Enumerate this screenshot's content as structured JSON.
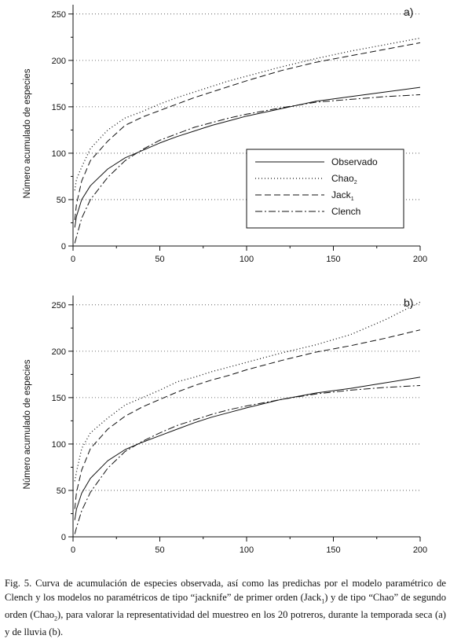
{
  "chart_data": [
    {
      "type": "line",
      "panel_label": "a)",
      "ylabel": "Número acumulado de especies",
      "xlabel": "",
      "xlim": [
        0,
        200
      ],
      "ylim": [
        0,
        260
      ],
      "xticks": [
        0,
        50,
        100,
        150,
        200
      ],
      "yticks": [
        0,
        50,
        100,
        150,
        200,
        250
      ],
      "gridlines_y": [
        50,
        100,
        150,
        200,
        250
      ],
      "legend": {
        "position": "center-right",
        "entries": [
          {
            "label": "Observado",
            "sub": ""
          },
          {
            "label": "Chao",
            "sub": "2"
          },
          {
            "label": "Jack",
            "sub": "1"
          },
          {
            "label": "Clench",
            "sub": ""
          }
        ]
      },
      "x": [
        1,
        2,
        5,
        10,
        20,
        30,
        40,
        50,
        60,
        70,
        80,
        90,
        100,
        120,
        140,
        160,
        180,
        200
      ],
      "series": [
        {
          "name": "Observado",
          "style": "solid",
          "values": [
            20,
            32,
            50,
            65,
            83,
            95,
            103,
            111,
            118,
            124,
            130,
            135,
            140,
            148,
            156,
            161,
            166,
            171
          ]
        },
        {
          "name": "Chao2",
          "style": "dotted",
          "values": [
            60,
            72,
            85,
            105,
            125,
            138,
            145,
            153,
            160,
            166,
            172,
            178,
            183,
            193,
            202,
            210,
            217,
            224
          ]
        },
        {
          "name": "Jack1",
          "style": "dashed",
          "values": [
            28,
            45,
            70,
            92,
            113,
            130,
            139,
            146,
            153,
            160,
            166,
            172,
            178,
            189,
            198,
            205,
            212,
            219
          ]
        },
        {
          "name": "Clench",
          "style": "dashdot",
          "values": [
            3,
            10,
            30,
            50,
            74,
            92,
            104,
            114,
            121,
            128,
            133,
            138,
            142,
            149,
            155,
            158,
            161,
            163
          ]
        }
      ]
    },
    {
      "type": "line",
      "panel_label": "b)",
      "ylabel": "Número acumulado de especies",
      "xlabel": "",
      "xlim": [
        0,
        200
      ],
      "ylim": [
        0,
        260
      ],
      "xticks": [
        0,
        50,
        100,
        150,
        200
      ],
      "yticks": [
        0,
        50,
        100,
        150,
        200,
        250
      ],
      "gridlines_y": [
        50,
        100,
        150,
        200,
        250
      ],
      "x": [
        1,
        2,
        5,
        10,
        20,
        30,
        40,
        50,
        60,
        70,
        80,
        90,
        100,
        120,
        140,
        160,
        180,
        200
      ],
      "series": [
        {
          "name": "Observado",
          "style": "solid",
          "values": [
            18,
            30,
            47,
            63,
            82,
            94,
            102,
            109,
            116,
            123,
            129,
            134,
            139,
            148,
            155,
            160,
            166,
            172
          ]
        },
        {
          "name": "Chao2",
          "style": "dotted",
          "values": [
            60,
            70,
            95,
            112,
            128,
            142,
            150,
            158,
            167,
            172,
            178,
            183,
            188,
            198,
            207,
            218,
            234,
            253
          ]
        },
        {
          "name": "Jack1",
          "style": "dashed",
          "values": [
            30,
            48,
            72,
            95,
            116,
            130,
            140,
            148,
            156,
            163,
            169,
            174,
            180,
            190,
            199,
            206,
            214,
            223
          ]
        },
        {
          "name": "Clench",
          "style": "dashdot",
          "values": [
            3,
            10,
            28,
            48,
            74,
            92,
            103,
            112,
            120,
            126,
            132,
            137,
            141,
            148,
            154,
            158,
            161,
            163
          ]
        }
      ]
    }
  ],
  "caption": {
    "line1": "Fig. 5. Curva de acumulación de especies observada, así como las predichas por el modelo",
    "line2": "paramétrico de Clench y los modelos no paramétricos de tipo “jacknife” de primer orden",
    "line3a": "(Jack",
    "line3a_sub": "1",
    "line3b": ") y de tipo “Chao” de segundo orden (Chao",
    "line3b_sub": "2",
    "line3c": "), para valorar la representatividad del",
    "line4": "muestreo en los 20 potreros, durante la temporada seca (a) y de lluvia (b)."
  }
}
